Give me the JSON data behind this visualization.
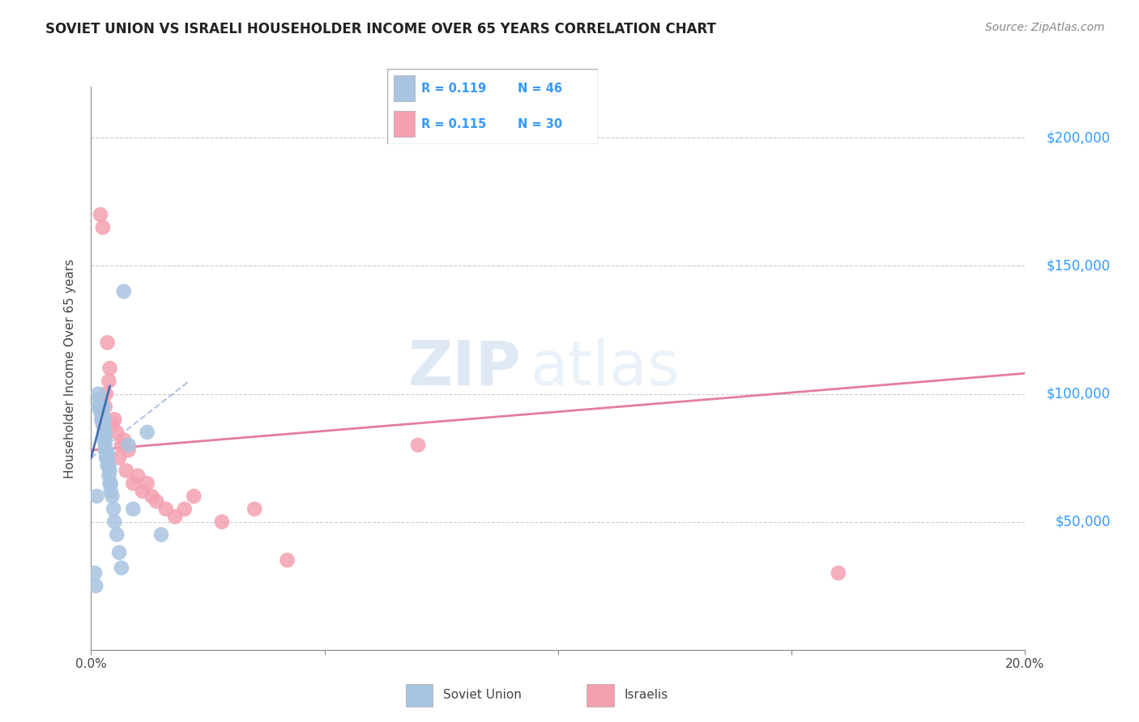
{
  "title": "SOVIET UNION VS ISRAELI HOUSEHOLDER INCOME OVER 65 YEARS CORRELATION CHART",
  "source": "Source: ZipAtlas.com",
  "ylabel": "Householder Income Over 65 years",
  "xlim": [
    0,
    0.2
  ],
  "ylim": [
    0,
    220000
  ],
  "xticks": [
    0.0,
    0.05,
    0.1,
    0.15,
    0.2
  ],
  "xtick_labels": [
    "0.0%",
    "",
    "",
    "",
    "20.0%"
  ],
  "ytick_labels_right": [
    "$50,000",
    "$100,000",
    "$150,000",
    "$200,000"
  ],
  "ytick_values_right": [
    50000,
    100000,
    150000,
    200000
  ],
  "legend_r_soviet": "R = 0.119",
  "legend_n_soviet": "N = 46",
  "legend_r_israeli": "R = 0.115",
  "legend_n_israeli": "N = 30",
  "soviet_color": "#a8c4e0",
  "israeli_color": "#f4a0b0",
  "soviet_line_color": "#6699cc",
  "israeli_line_color": "#e07090",
  "soviet_x": [
    0.0008,
    0.001,
    0.0012,
    0.0015,
    0.0015,
    0.0018,
    0.0018,
    0.002,
    0.002,
    0.0022,
    0.0022,
    0.0022,
    0.0025,
    0.0025,
    0.0025,
    0.0025,
    0.0028,
    0.0028,
    0.0028,
    0.0028,
    0.003,
    0.003,
    0.003,
    0.003,
    0.0032,
    0.0032,
    0.0035,
    0.0035,
    0.0035,
    0.0038,
    0.0038,
    0.004,
    0.004,
    0.0042,
    0.0042,
    0.0045,
    0.0048,
    0.005,
    0.0055,
    0.006,
    0.0065,
    0.007,
    0.008,
    0.009,
    0.012,
    0.015
  ],
  "soviet_y": [
    30000,
    25000,
    60000,
    95000,
    100000,
    95000,
    98000,
    93000,
    95000,
    90000,
    93000,
    95000,
    88000,
    90000,
    92000,
    95000,
    82000,
    85000,
    87000,
    90000,
    78000,
    80000,
    83000,
    85000,
    75000,
    78000,
    72000,
    75000,
    77000,
    68000,
    72000,
    65000,
    70000,
    62000,
    65000,
    60000,
    55000,
    50000,
    45000,
    38000,
    32000,
    140000,
    80000,
    55000,
    85000,
    45000
  ],
  "israeli_x": [
    0.002,
    0.0025,
    0.003,
    0.0032,
    0.0035,
    0.0038,
    0.004,
    0.0045,
    0.005,
    0.0055,
    0.006,
    0.0065,
    0.007,
    0.0075,
    0.008,
    0.009,
    0.01,
    0.011,
    0.012,
    0.013,
    0.014,
    0.016,
    0.018,
    0.02,
    0.022,
    0.028,
    0.035,
    0.042,
    0.07,
    0.16
  ],
  "israeli_y": [
    170000,
    165000,
    95000,
    100000,
    120000,
    105000,
    110000,
    88000,
    90000,
    85000,
    75000,
    80000,
    82000,
    70000,
    78000,
    65000,
    68000,
    62000,
    65000,
    60000,
    58000,
    55000,
    52000,
    55000,
    60000,
    50000,
    55000,
    35000,
    80000,
    30000
  ],
  "soviet_trendline_x0": 0.0,
  "soviet_trendline_x1": 0.021,
  "soviet_trendline_y0": 75000,
  "soviet_trendline_y1": 105000,
  "israeli_trendline_x0": 0.0,
  "israeli_trendline_x1": 0.2,
  "israeli_trendline_y0": 78000,
  "israeli_trendline_y1": 108000
}
